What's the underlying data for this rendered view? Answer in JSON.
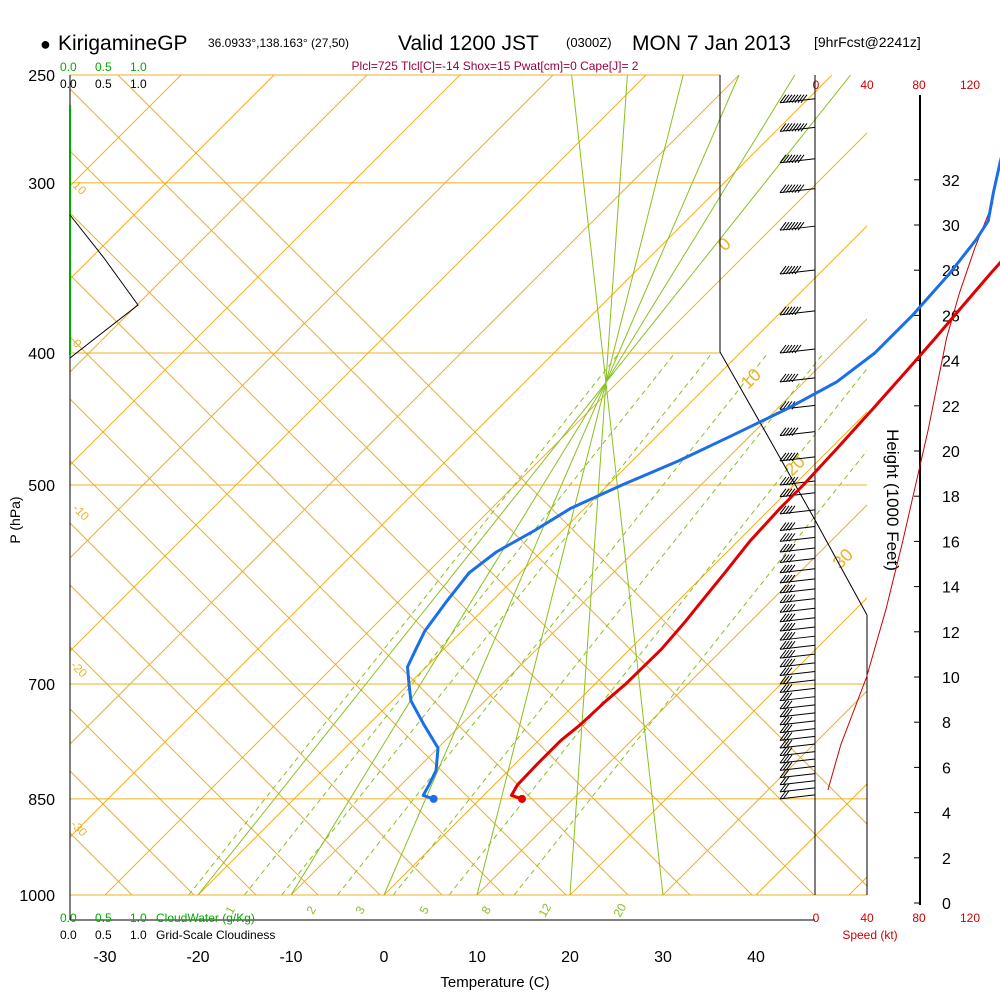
{
  "header": {
    "station_bullet": "●",
    "station": "KirigamineGP",
    "coords": "36.0933°,138.163° (27,50)",
    "valid": "Valid 1200 JST",
    "utc": "(0300Z)",
    "date": "MON 7 Jan 2013",
    "forecast": "[9hrFcst@2241z]"
  },
  "params_line": "Plcl=725 Tlcl[C]=-14 Shox=15 Pwat[cm]=0 Cape[J]= 2",
  "labels": {
    "ylabel": "P (hPa)",
    "xlabel": "Temperature (C)",
    "height_label": "Height (1000 Feet)",
    "speed_label": "Speed (kt)",
    "cloudwater_label": "CloudWater (g/Kg)",
    "cloudiness_label": "Grid-Scale Cloudiness"
  },
  "colors": {
    "temperature": "#e00000",
    "dewpoint": "#1a6fe8",
    "isotherm": "#f0b020",
    "dry_adiabat": "#f0b020",
    "moist_adiabat": "#88c020",
    "mixing_ratio": "#88c020",
    "cloud": "#00aa00",
    "speed": "#cc0000",
    "params": "#990044"
  },
  "top_scales": {
    "cloudwater": [
      "0.0",
      "0.5",
      "1.0"
    ],
    "cloudiness": [
      "0.0",
      "0.5",
      "1.0"
    ],
    "speed": [
      "0",
      "40",
      "80",
      "120"
    ]
  },
  "bottom_scales": {
    "cloudwater": [
      "0.0",
      "0.5",
      "1.0"
    ],
    "cloudiness": [
      "0.0",
      "0.5",
      "1.0"
    ],
    "speed": [
      "0",
      "40",
      "80",
      "120"
    ]
  },
  "isotherm_labels": [
    "10",
    "0",
    "-10",
    "-20",
    "-30"
  ],
  "isotherm_labels_right": [
    "0",
    "10",
    "20",
    "30"
  ],
  "mixing_ratio_labels": [
    "1",
    "2",
    "3",
    "5",
    "8",
    "12",
    "20"
  ],
  "chart_data": {
    "type": "line",
    "title": "KirigamineGP 36.0933°,138.163° (27,50) Valid 1200 JST (0300Z) MON 7 Jan 2013 [9hrFcst@2241z]",
    "xlabel": "Temperature (C)",
    "ylabel": "P (hPa)",
    "x_ticks": [
      -30,
      -20,
      -10,
      0,
      10,
      20,
      30,
      40
    ],
    "y_ticks": [
      250,
      300,
      400,
      500,
      700,
      850,
      1000
    ],
    "xlim": [
      -34,
      49
    ],
    "ylim": [
      1000,
      250
    ],
    "y_scale": "log",
    "skew": "skew-T log-P diagram",
    "grid": true,
    "series": [
      {
        "name": "Temperature",
        "points": [
          [
            4.5,
            850
          ],
          [
            3.0,
            845
          ],
          [
            2.5,
            830
          ],
          [
            2.4,
            800
          ],
          [
            2.4,
            770
          ],
          [
            2.8,
            750
          ],
          [
            3.0,
            720
          ],
          [
            3.3,
            700
          ],
          [
            3.4,
            660
          ],
          [
            3.0,
            630
          ],
          [
            2.6,
            610
          ],
          [
            2.0,
            580
          ],
          [
            1.3,
            550
          ],
          [
            1.0,
            520
          ],
          [
            1.0,
            500
          ],
          [
            0.7,
            470
          ],
          [
            0.3,
            440
          ],
          [
            -0.2,
            410
          ],
          [
            -0.6,
            390
          ],
          [
            -1.1,
            370
          ],
          [
            -1.6,
            350
          ],
          [
            -2.0,
            330
          ],
          [
            -2.0,
            322
          ],
          [
            -1.6,
            312
          ],
          [
            -1.0,
            302
          ],
          [
            0.2,
            290
          ],
          [
            1.5,
            278
          ],
          [
            2.9,
            265
          ]
        ]
      },
      {
        "name": "Dew point",
        "points": [
          [
            -5.0,
            850
          ],
          [
            -6.5,
            845
          ],
          [
            -7.0,
            830
          ],
          [
            -7.8,
            810
          ],
          [
            -10.0,
            780
          ],
          [
            -14.0,
            750
          ],
          [
            -18.0,
            720
          ],
          [
            -20.0,
            700
          ],
          [
            -22.0,
            680
          ],
          [
            -23.0,
            660
          ],
          [
            -24.0,
            640
          ],
          [
            -24.8,
            610
          ],
          [
            -25.5,
            580
          ],
          [
            -24.8,
            560
          ],
          [
            -23.0,
            540
          ],
          [
            -21.5,
            520
          ],
          [
            -18.5,
            500
          ],
          [
            -15.0,
            480
          ],
          [
            -12.0,
            460
          ],
          [
            -9.0,
            440
          ],
          [
            -6.5,
            420
          ],
          [
            -5.5,
            400
          ],
          [
            -5.5,
            375
          ],
          [
            -6.0,
            350
          ],
          [
            -6.8,
            330
          ],
          [
            -7.5,
            320
          ],
          [
            -10.0,
            305
          ],
          [
            -12.5,
            290
          ],
          [
            -15.0,
            275
          ],
          [
            -14.5,
            265
          ]
        ]
      },
      {
        "name": "Height (1000 Feet)",
        "axis": "right",
        "ticks": [
          0,
          2,
          4,
          6,
          8,
          10,
          12,
          14,
          16,
          18,
          20,
          22,
          24,
          26,
          28,
          30,
          32
        ]
      },
      {
        "name": "Speed (kt)",
        "x_ticks": [
          0,
          40,
          80,
          120
        ],
        "points": [
          [
            10,
            5.0
          ],
          [
            20,
            7.0
          ],
          [
            40,
            10.0
          ],
          [
            55,
            13.0
          ],
          [
            68,
            16.0
          ],
          [
            80,
            19.0
          ],
          [
            88,
            21.0
          ],
          [
            95,
            23.0
          ],
          [
            102,
            25.0
          ],
          [
            112,
            27.0
          ],
          [
            124,
            29.0
          ],
          [
            138,
            31.0
          ]
        ]
      }
    ],
    "wind_barbs": [
      {
        "p": 850,
        "kt": 20
      },
      {
        "p": 840,
        "kt": 20
      },
      {
        "p": 830,
        "kt": 20
      },
      {
        "p": 820,
        "kt": 20
      },
      {
        "p": 810,
        "kt": 25
      },
      {
        "p": 800,
        "kt": 25
      },
      {
        "p": 790,
        "kt": 25
      },
      {
        "p": 780,
        "kt": 25
      },
      {
        "p": 770,
        "kt": 25
      },
      {
        "p": 760,
        "kt": 25
      },
      {
        "p": 750,
        "kt": 30
      },
      {
        "p": 740,
        "kt": 30
      },
      {
        "p": 730,
        "kt": 30
      },
      {
        "p": 720,
        "kt": 30
      },
      {
        "p": 710,
        "kt": 30
      },
      {
        "p": 700,
        "kt": 30
      },
      {
        "p": 690,
        "kt": 30
      },
      {
        "p": 680,
        "kt": 35
      },
      {
        "p": 670,
        "kt": 35
      },
      {
        "p": 660,
        "kt": 35
      },
      {
        "p": 650,
        "kt": 35
      },
      {
        "p": 640,
        "kt": 35
      },
      {
        "p": 630,
        "kt": 35
      },
      {
        "p": 620,
        "kt": 35
      },
      {
        "p": 610,
        "kt": 35
      },
      {
        "p": 600,
        "kt": 40
      },
      {
        "p": 590,
        "kt": 40
      },
      {
        "p": 580,
        "kt": 40
      },
      {
        "p": 570,
        "kt": 40
      },
      {
        "p": 560,
        "kt": 40
      },
      {
        "p": 550,
        "kt": 40
      },
      {
        "p": 540,
        "kt": 40
      },
      {
        "p": 525,
        "kt": 40
      },
      {
        "p": 510,
        "kt": 40
      },
      {
        "p": 500,
        "kt": 45
      },
      {
        "p": 480,
        "kt": 45
      },
      {
        "p": 460,
        "kt": 45
      },
      {
        "p": 440,
        "kt": 50
      },
      {
        "p": 420,
        "kt": 50
      },
      {
        "p": 400,
        "kt": 55
      },
      {
        "p": 375,
        "kt": 55
      },
      {
        "p": 350,
        "kt": 60
      },
      {
        "p": 325,
        "kt": 65
      },
      {
        "p": 305,
        "kt": 70
      },
      {
        "p": 290,
        "kt": 70
      },
      {
        "p": 275,
        "kt": 75
      },
      {
        "p": 262,
        "kt": 80
      }
    ]
  }
}
